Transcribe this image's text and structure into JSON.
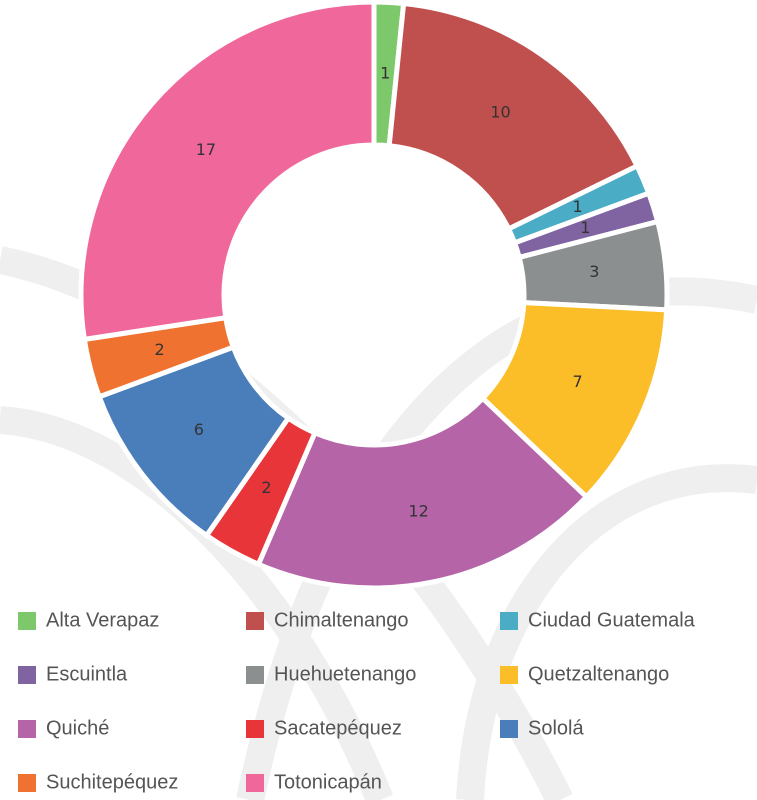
{
  "chart_data": {
    "type": "donut",
    "categories": [
      "Alta Verapaz",
      "Chimaltenango",
      "Ciudad Guatemala",
      "Escuintla",
      "Huehuetenango",
      "Quetzaltenango",
      "Quiché",
      "Sacatepéquez",
      "Sololá",
      "Suchitepéquez",
      "Totonicapán"
    ],
    "values": [
      1,
      10,
      1,
      1,
      3,
      7,
      12,
      2,
      6,
      2,
      17
    ],
    "colors": [
      "#7dc86a",
      "#c0504d",
      "#4bacc6",
      "#8064a2",
      "#8c8f8f",
      "#fbbd28",
      "#b565a7",
      "#e8353a",
      "#4a7ebb",
      "#f07230",
      "#f0689b"
    ]
  }
}
